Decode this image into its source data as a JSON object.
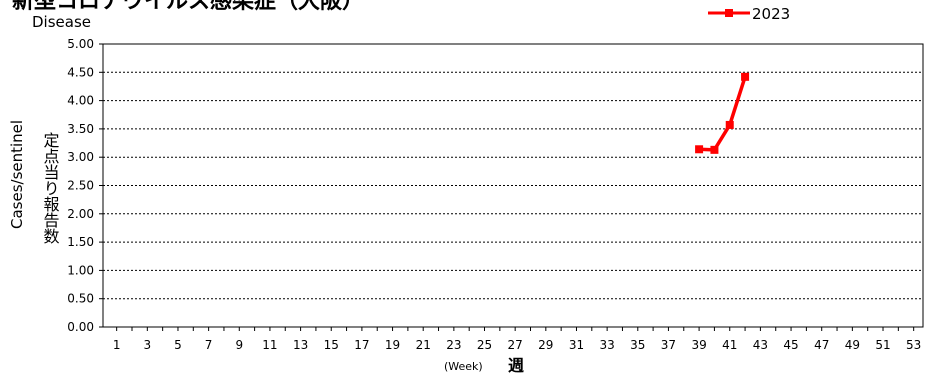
{
  "chart_data": {
    "type": "line",
    "title": "新型コロナウイルス感染症（大阪）",
    "subtitle": "Disease",
    "ylabel_en": "Cases/sentinel",
    "ylabel_jp": "定点当り報告数",
    "xlabel_en": "(Week)",
    "xlabel_jp": "週",
    "ylim": [
      0,
      5
    ],
    "ytick_labels": [
      "0.00",
      "0.50",
      "1.00",
      "1.50",
      "2.00",
      "2.50",
      "3.00",
      "3.50",
      "4.00",
      "4.50",
      "5.00"
    ],
    "xlim": [
      1,
      53
    ],
    "xtick_labels": [
      "1",
      "3",
      "5",
      "7",
      "9",
      "11",
      "13",
      "15",
      "17",
      "19",
      "21",
      "23",
      "25",
      "27",
      "29",
      "31",
      "33",
      "35",
      "37",
      "39",
      "41",
      "43",
      "45",
      "47",
      "49",
      "51",
      "53"
    ],
    "grid": true,
    "legend_position": "top-right",
    "series": [
      {
        "name": "2023",
        "color": "#ff0000",
        "marker": "square",
        "x": [
          39,
          40,
          41,
          42
        ],
        "values": [
          3.14,
          3.13,
          3.57,
          4.42
        ]
      }
    ]
  }
}
